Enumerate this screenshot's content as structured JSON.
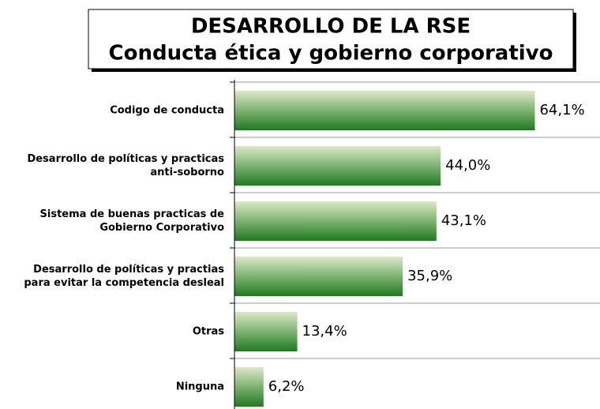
{
  "chart_data": {
    "type": "bar",
    "orientation": "horizontal",
    "title": "DESARROLLO DE LA RSE",
    "subtitle": "Conducta ética y gobierno corporativo",
    "categories": [
      [
        "Codigo de conducta"
      ],
      [
        "Desarrollo de políticas y practicas",
        "anti-soborno"
      ],
      [
        "Sistema de buenas practicas de",
        "Gobierno Corporativo"
      ],
      [
        "Desarrollo de políticas y practias",
        "para evitar la competencia desleal"
      ],
      [
        "Otras"
      ],
      [
        "Ninguna"
      ]
    ],
    "values": [
      64.1,
      44.0,
      43.1,
      35.9,
      13.4,
      6.2
    ],
    "value_labels": [
      "64,1%",
      "44,0%",
      "43,1%",
      "35,9%",
      "13,4%",
      "6,2%"
    ],
    "color": [
      "#dbe9c6",
      "#1f7a1f"
    ],
    "xlim": [
      0,
      78
    ],
    "grid": true
  }
}
